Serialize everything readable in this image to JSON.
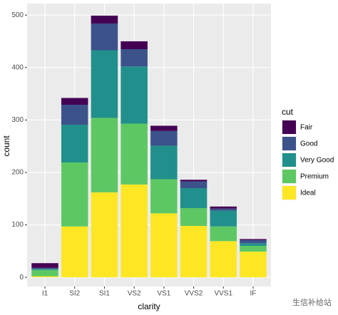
{
  "chart_data": {
    "type": "stacked_bar",
    "x_label": "clarity",
    "y_label": "count",
    "legend_title": "cut",
    "categories": [
      "I1",
      "SI2",
      "SI1",
      "VS2",
      "VS1",
      "VVS2",
      "VVS1",
      "IF"
    ],
    "series": [
      {
        "name": "Fair",
        "color": "#440154",
        "values": [
          9,
          13,
          15,
          15,
          10,
          3,
          4,
          2
        ]
      },
      {
        "name": "Good",
        "color": "#3B528B",
        "values": [
          2,
          38,
          51,
          33,
          28,
          13,
          4,
          6
        ]
      },
      {
        "name": "Very Good",
        "color": "#21908C",
        "values": [
          2,
          72,
          129,
          109,
          64,
          38,
          30,
          5
        ]
      },
      {
        "name": "Premium",
        "color": "#5DC863",
        "values": [
          12,
          122,
          142,
          116,
          65,
          34,
          28,
          11
        ]
      },
      {
        "name": "Ideal",
        "color": "#FDE725",
        "values": [
          2,
          97,
          162,
          177,
          122,
          98,
          69,
          49
        ]
      }
    ],
    "ylim": [
      -17.5,
      522
    ],
    "yticks": [
      0,
      100,
      200,
      300,
      400,
      500
    ],
    "grid": true,
    "legend_position": "right",
    "watermark": "生信补给站"
  }
}
